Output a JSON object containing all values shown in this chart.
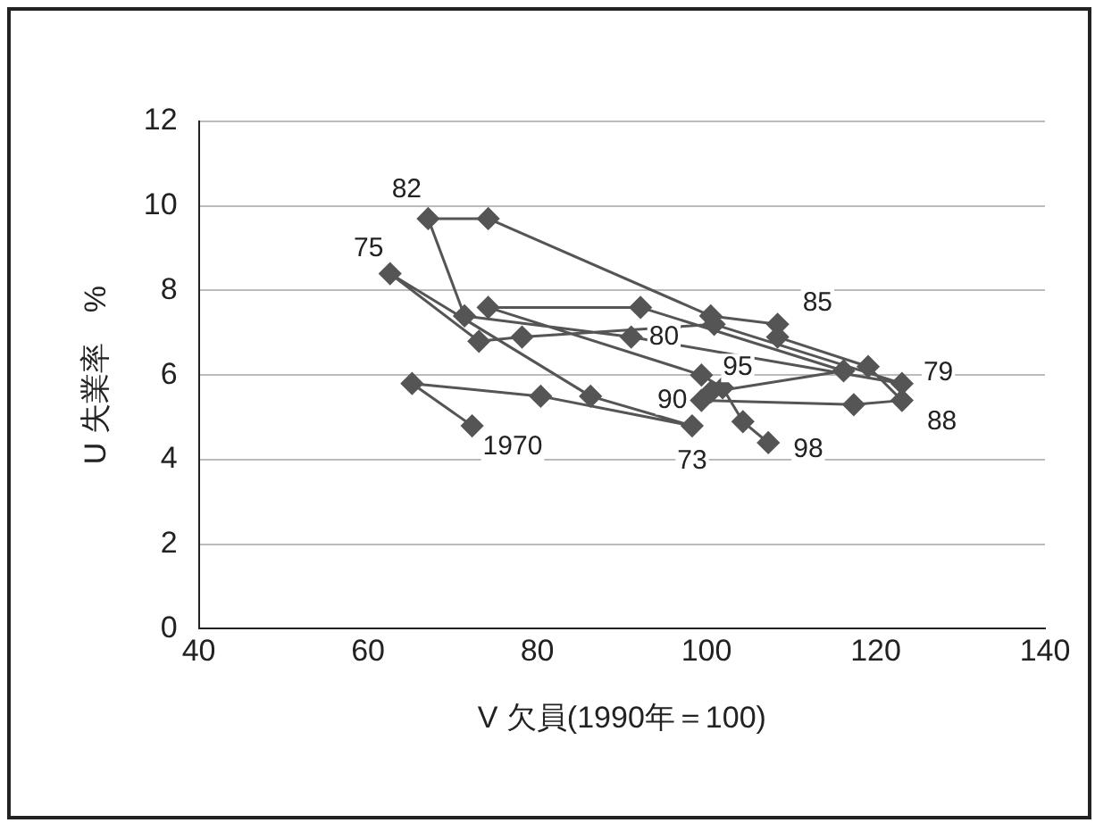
{
  "chart_data": {
    "type": "line",
    "xlabel": "V 欠員(1990年＝100)",
    "ylabel": "U 失業率　%",
    "series": [
      {
        "color": "#555555",
        "x": [
          72.3,
          65.2,
          80.4,
          98.3,
          86.3,
          62.6,
          73.1,
          78.2,
          100.9,
          123.1,
          91.1,
          71.4,
          67.1,
          74.2,
          100.5,
          108.4,
          108.4,
          119.1,
          123.1,
          117.4,
          99.4,
          100.5,
          116.2,
          92.2,
          74.2,
          99.4,
          101.9,
          104.3,
          107.3
        ],
        "values": [
          4.8,
          5.8,
          5.5,
          4.8,
          5.5,
          8.4,
          6.8,
          6.9,
          7.2,
          5.8,
          6.9,
          7.4,
          9.7,
          9.7,
          7.4,
          7.2,
          6.9,
          6.2,
          5.4,
          5.3,
          5.4,
          5.6,
          6.1,
          7.6,
          7.6,
          6.0,
          5.7,
          4.9,
          4.4
        ]
      }
    ],
    "annotations": [
      {
        "text": "1970",
        "x": 72.3,
        "y": 4.8
      },
      {
        "text": "73",
        "x": 98.3,
        "y": 4.8
      },
      {
        "text": "75",
        "x": 62.6,
        "y": 8.4
      },
      {
        "text": "79",
        "x": 123.1,
        "y": 5.8
      },
      {
        "text": "80",
        "x": 91.1,
        "y": 6.9
      },
      {
        "text": "82",
        "x": 67.1,
        "y": 9.7
      },
      {
        "text": "85",
        "x": 108.4,
        "y": 7.2
      },
      {
        "text": "88",
        "x": 123.1,
        "y": 5.4
      },
      {
        "text": "90",
        "x": 99.4,
        "y": 5.4
      },
      {
        "text": "95",
        "x": 99.4,
        "y": 6.0
      },
      {
        "text": "98",
        "x": 107.3,
        "y": 4.4
      }
    ],
    "xlim": [
      40,
      140
    ],
    "xticks": [
      40,
      60,
      80,
      100,
      120,
      140
    ],
    "ylim": [
      0,
      12
    ],
    "yticks": [
      0,
      2,
      4,
      6,
      8,
      10,
      12
    ],
    "grid": "y",
    "marker": "diamond",
    "line_style": "solid",
    "legend": false
  }
}
